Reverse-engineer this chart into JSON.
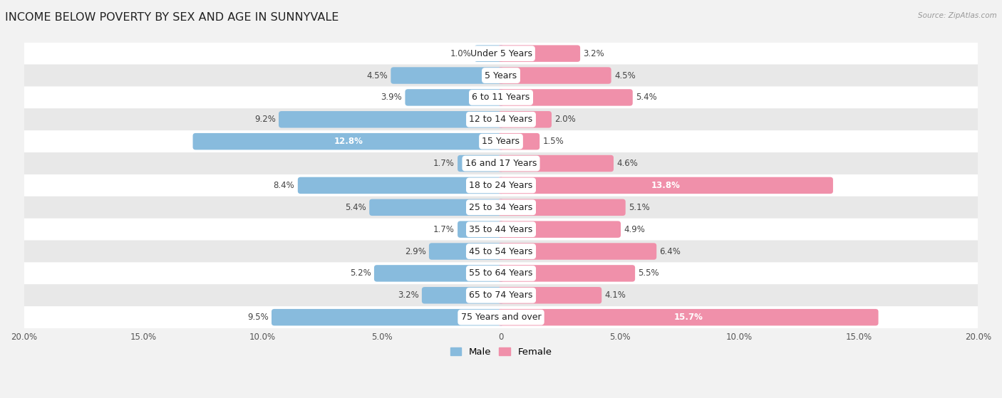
{
  "title": "INCOME BELOW POVERTY BY SEX AND AGE IN SUNNYVALE",
  "source": "Source: ZipAtlas.com",
  "categories": [
    "Under 5 Years",
    "5 Years",
    "6 to 11 Years",
    "12 to 14 Years",
    "15 Years",
    "16 and 17 Years",
    "18 to 24 Years",
    "25 to 34 Years",
    "35 to 44 Years",
    "45 to 54 Years",
    "55 to 64 Years",
    "65 to 74 Years",
    "75 Years and over"
  ],
  "male": [
    1.0,
    4.5,
    3.9,
    9.2,
    12.8,
    1.7,
    8.4,
    5.4,
    1.7,
    2.9,
    5.2,
    3.2,
    9.5
  ],
  "female": [
    3.2,
    4.5,
    5.4,
    2.0,
    1.5,
    4.6,
    13.8,
    5.1,
    4.9,
    6.4,
    5.5,
    4.1,
    15.7
  ],
  "male_color": "#88bbdd",
  "female_color": "#f090aa",
  "inside_threshold": 11.0,
  "xlim": 20.0,
  "bar_height": 0.52,
  "background_color": "#f2f2f2",
  "row_color_odd": "#ffffff",
  "row_color_even": "#e8e8e8",
  "title_fontsize": 11.5,
  "label_fontsize": 8.5,
  "category_fontsize": 9,
  "axis_fontsize": 8.5,
  "legend_fontsize": 9.5
}
